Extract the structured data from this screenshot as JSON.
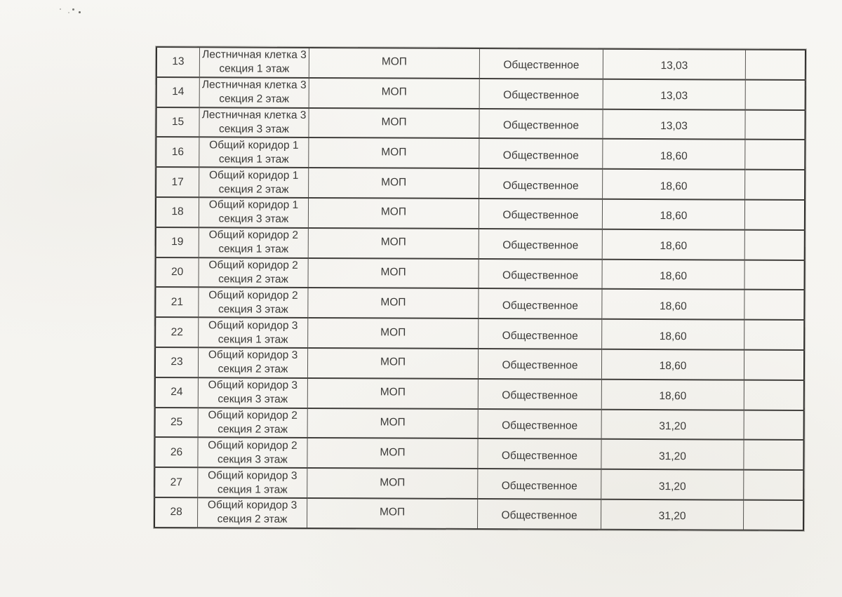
{
  "colors": {
    "paper": "#f6f5f2",
    "grid_line": "#413f3c",
    "outer_border": "#2e2d2b",
    "text": "#3b3a38"
  },
  "table": {
    "rows": [
      {
        "num": "13",
        "name": "Лестничная клетка 3",
        "location": "секция 1 этаж",
        "type": "МОП",
        "category": "Общественное",
        "area": "13,03",
        "note": ""
      },
      {
        "num": "14",
        "name": "Лестничная клетка 3",
        "location": "секция 2 этаж",
        "type": "МОП",
        "category": "Общественное",
        "area": "13,03",
        "note": ""
      },
      {
        "num": "15",
        "name": "Лестничная клетка 3",
        "location": "секция 3 этаж",
        "type": "МОП",
        "category": "Общественное",
        "area": "13,03",
        "note": ""
      },
      {
        "num": "16",
        "name": "Общий коридор 1",
        "location": "секция 1 этаж",
        "type": "МОП",
        "category": "Общественное",
        "area": "18,60",
        "note": ""
      },
      {
        "num": "17",
        "name": "Общий коридор 1",
        "location": "секция 2 этаж",
        "type": "МОП",
        "category": "Общественное",
        "area": "18,60",
        "note": ""
      },
      {
        "num": "18",
        "name": "Общий коридор 1",
        "location": "секция 3 этаж",
        "type": "МОП",
        "category": "Общественное",
        "area": "18,60",
        "note": ""
      },
      {
        "num": "19",
        "name": "Общий коридор 2",
        "location": "секция 1 этаж",
        "type": "МОП",
        "category": "Общественное",
        "area": "18,60",
        "note": ""
      },
      {
        "num": "20",
        "name": "Общий коридор 2",
        "location": "секция 2 этаж",
        "type": "МОП",
        "category": "Общественное",
        "area": "18,60",
        "note": ""
      },
      {
        "num": "21",
        "name": "Общий коридор 2",
        "location": "секция 3 этаж",
        "type": "МОП",
        "category": "Общественное",
        "area": "18,60",
        "note": ""
      },
      {
        "num": "22",
        "name": "Общий коридор 3",
        "location": "секция 1 этаж",
        "type": "МОП",
        "category": "Общественное",
        "area": "18,60",
        "note": ""
      },
      {
        "num": "23",
        "name": "Общий коридор 3",
        "location": "секция 2 этаж",
        "type": "МОП",
        "category": "Общественное",
        "area": "18,60",
        "note": ""
      },
      {
        "num": "24",
        "name": "Общий коридор 3",
        "location": "секция 3 этаж",
        "type": "МОП",
        "category": "Общественное",
        "area": "18,60",
        "note": ""
      },
      {
        "num": "25",
        "name": "Общий коридор 2",
        "location": "секция 2 этаж",
        "type": "МОП",
        "category": "Общественное",
        "area": "31,20",
        "note": ""
      },
      {
        "num": "26",
        "name": "Общий коридор 2",
        "location": "секция 3 этаж",
        "type": "МОП",
        "category": "Общественное",
        "area": "31,20",
        "note": ""
      },
      {
        "num": "27",
        "name": "Общий коридор 3",
        "location": "секция 1 этаж",
        "type": "МОП",
        "category": "Общественное",
        "area": "31,20",
        "note": ""
      },
      {
        "num": "28",
        "name": "Общий коридор 3",
        "location": "секция 2 этаж",
        "type": "МОП",
        "category": "Общественное",
        "area": "31,20",
        "note": ""
      }
    ]
  }
}
